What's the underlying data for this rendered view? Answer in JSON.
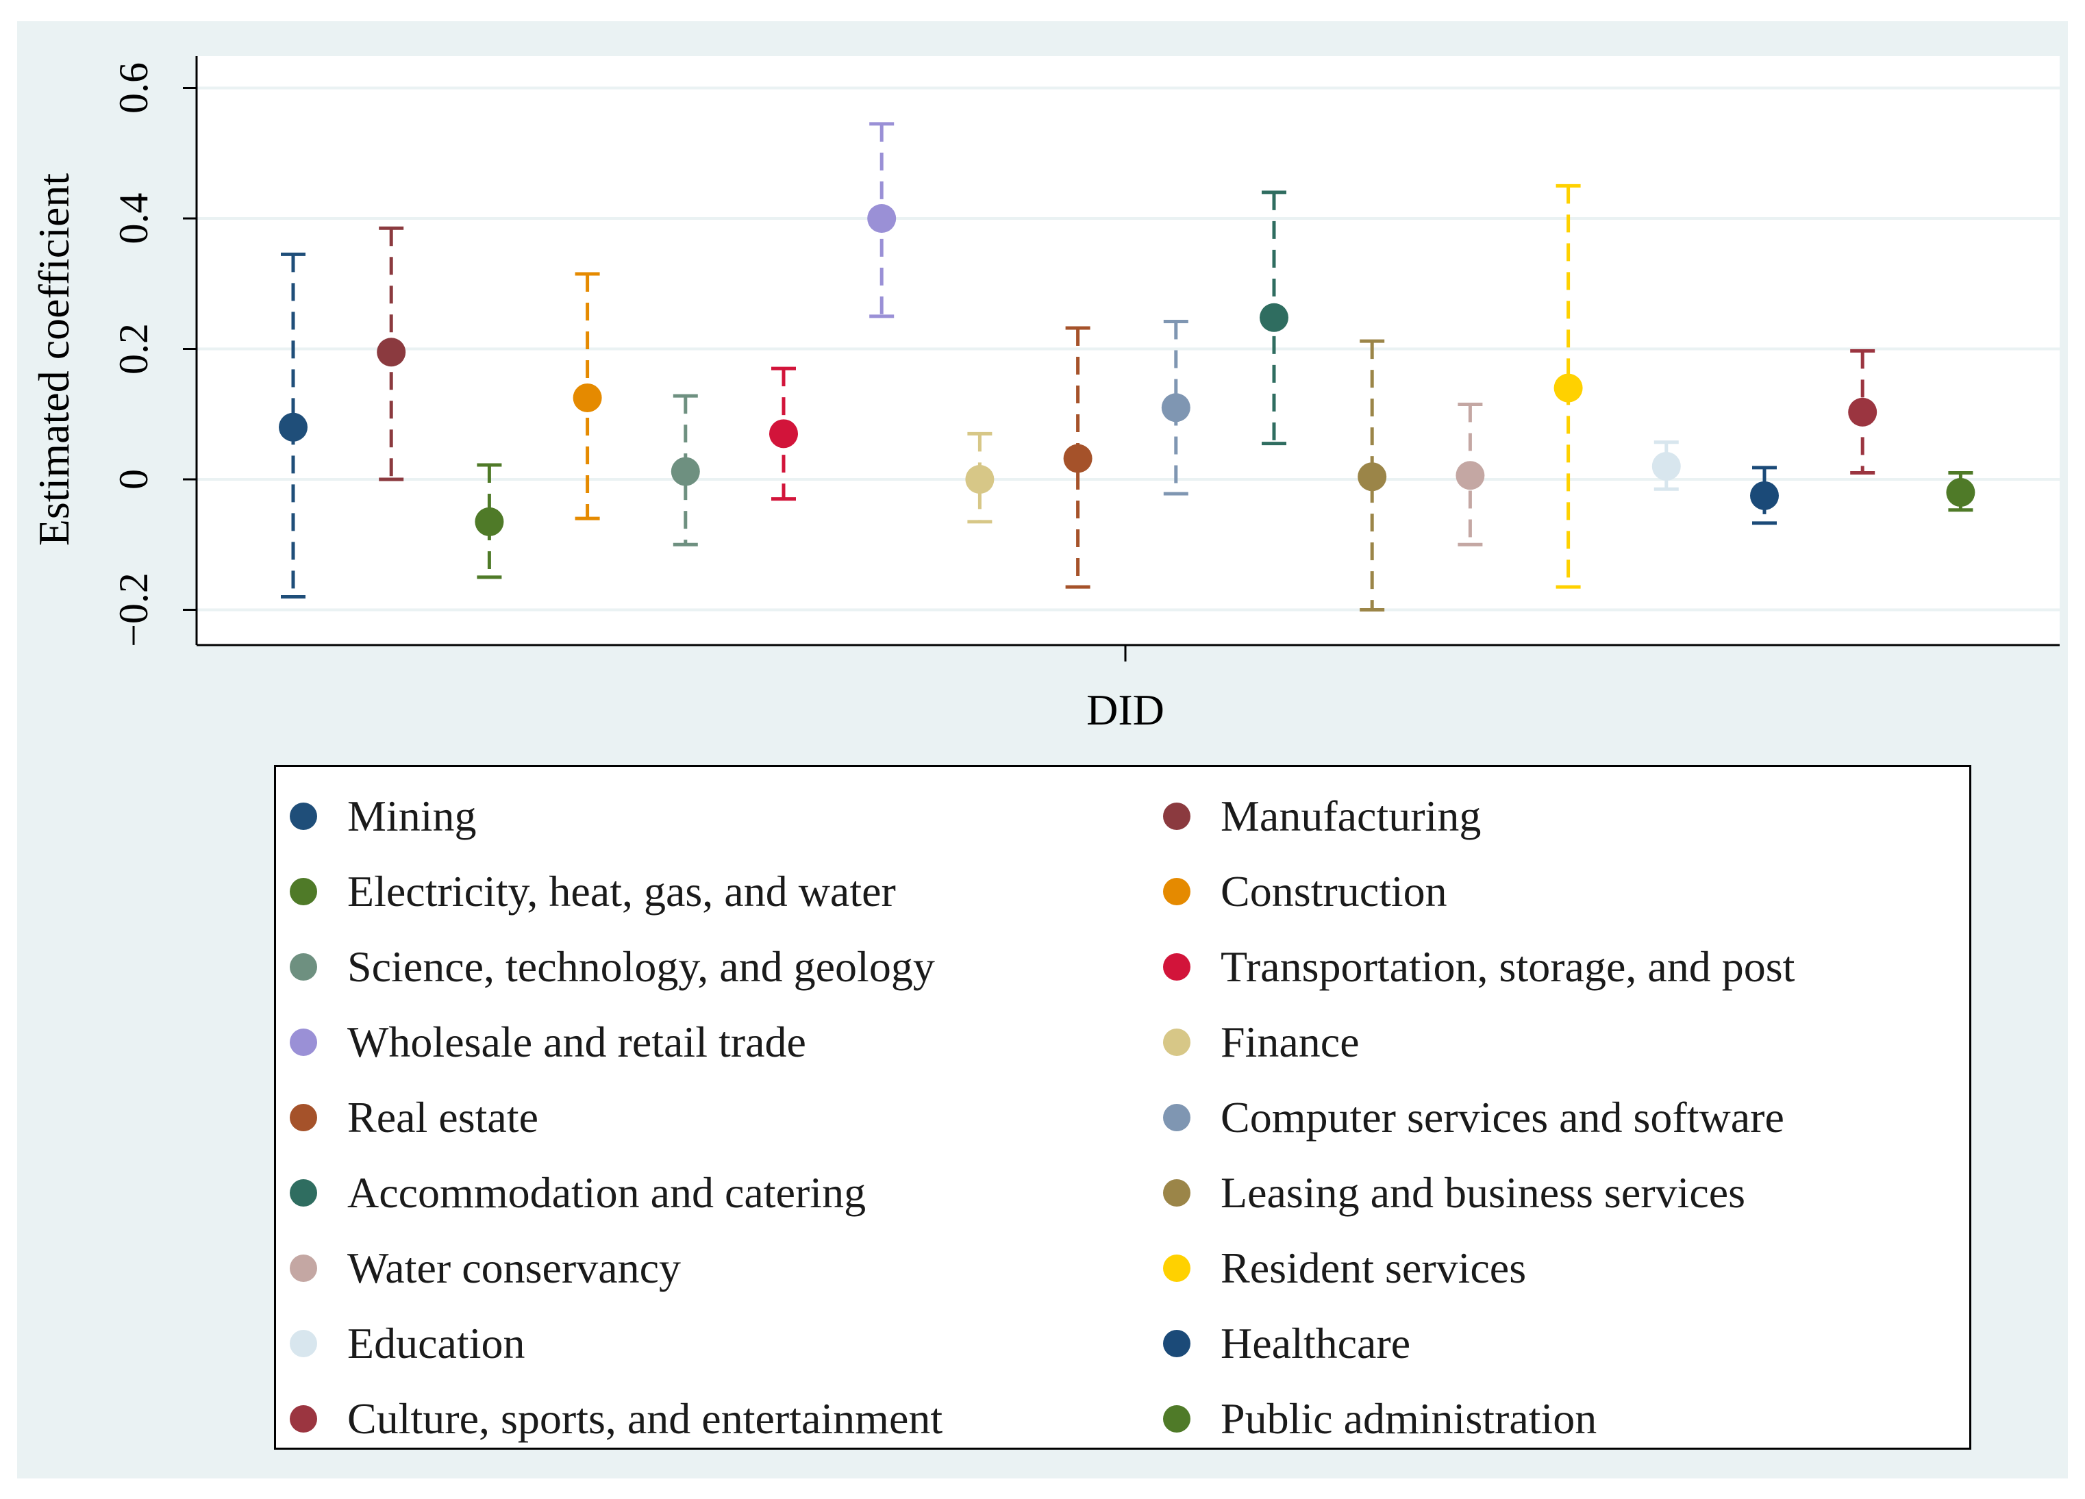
{
  "chart_data": {
    "type": "scatter",
    "subtype": "coefficient plot with 95% confidence intervals",
    "title": "",
    "xlabel": "DID",
    "ylabel": "Estimated coefficient",
    "ylim": [
      -0.25,
      0.65
    ],
    "yticks": [
      -0.2,
      0,
      0.2,
      0.4,
      0.6
    ],
    "ytick_labels": [
      "−0.2",
      "0",
      "0.2",
      "0.4",
      "0.6"
    ],
    "xtick_labels": [
      "DID"
    ],
    "grid": true,
    "legend_position": "bottom",
    "series": [
      {
        "name": "Mining",
        "color": "#1f4e79",
        "estimate": 0.08,
        "ci": [
          -0.18,
          0.345
        ]
      },
      {
        "name": "Manufacturing",
        "color": "#8b3a3f",
        "estimate": 0.195,
        "ci": [
          0.0,
          0.385
        ]
      },
      {
        "name": "Electricity, heat, gas, and water",
        "color": "#4f7a28",
        "estimate": -0.065,
        "ci": [
          -0.15,
          0.022
        ]
      },
      {
        "name": "Construction",
        "color": "#e58a00",
        "estimate": 0.125,
        "ci": [
          -0.06,
          0.315
        ]
      },
      {
        "name": "Science, technology, and geology",
        "color": "#6e9080",
        "estimate": 0.012,
        "ci": [
          -0.1,
          0.128
        ]
      },
      {
        "name": "Transportation, storage, and post",
        "color": "#d2143a",
        "estimate": 0.07,
        "ci": [
          -0.03,
          0.17
        ]
      },
      {
        "name": "Wholesale and retail trade",
        "color": "#9a90d6",
        "estimate": 0.4,
        "ci": [
          0.25,
          0.545
        ]
      },
      {
        "name": "Finance",
        "color": "#d7c787",
        "estimate": 0.0,
        "ci": [
          -0.065,
          0.07
        ]
      },
      {
        "name": "Real estate",
        "color": "#a5522a",
        "estimate": 0.032,
        "ci": [
          -0.165,
          0.232
        ]
      },
      {
        "name": "Computer services and software",
        "color": "#7f96b2",
        "estimate": 0.11,
        "ci": [
          -0.022,
          0.242
        ]
      },
      {
        "name": "Accommodation and catering",
        "color": "#2f6d60",
        "estimate": 0.248,
        "ci": [
          0.055,
          0.44
        ]
      },
      {
        "name": "Leasing and business services",
        "color": "#9b8548",
        "estimate": 0.004,
        "ci": [
          -0.2,
          0.212
        ]
      },
      {
        "name": "Water conservancy",
        "color": "#c4a7a3",
        "estimate": 0.006,
        "ci": [
          -0.1,
          0.115
        ]
      },
      {
        "name": "Resident services",
        "color": "#ffd100",
        "estimate": 0.14,
        "ci": [
          -0.165,
          0.45
        ]
      },
      {
        "name": "Education",
        "color": "#d8e6ee",
        "estimate": 0.02,
        "ci": [
          -0.015,
          0.057
        ]
      },
      {
        "name": "Healthcare",
        "color": "#1b4a78",
        "estimate": -0.025,
        "ci": [
          -0.067,
          0.018
        ]
      },
      {
        "name": "Culture, sports, and entertainment",
        "color": "#9b3540",
        "estimate": 0.103,
        "ci": [
          0.01,
          0.197
        ]
      },
      {
        "name": "Public administration",
        "color": "#4f7a28",
        "estimate": -0.02,
        "ci": [
          -0.047,
          0.01
        ]
      }
    ]
  }
}
